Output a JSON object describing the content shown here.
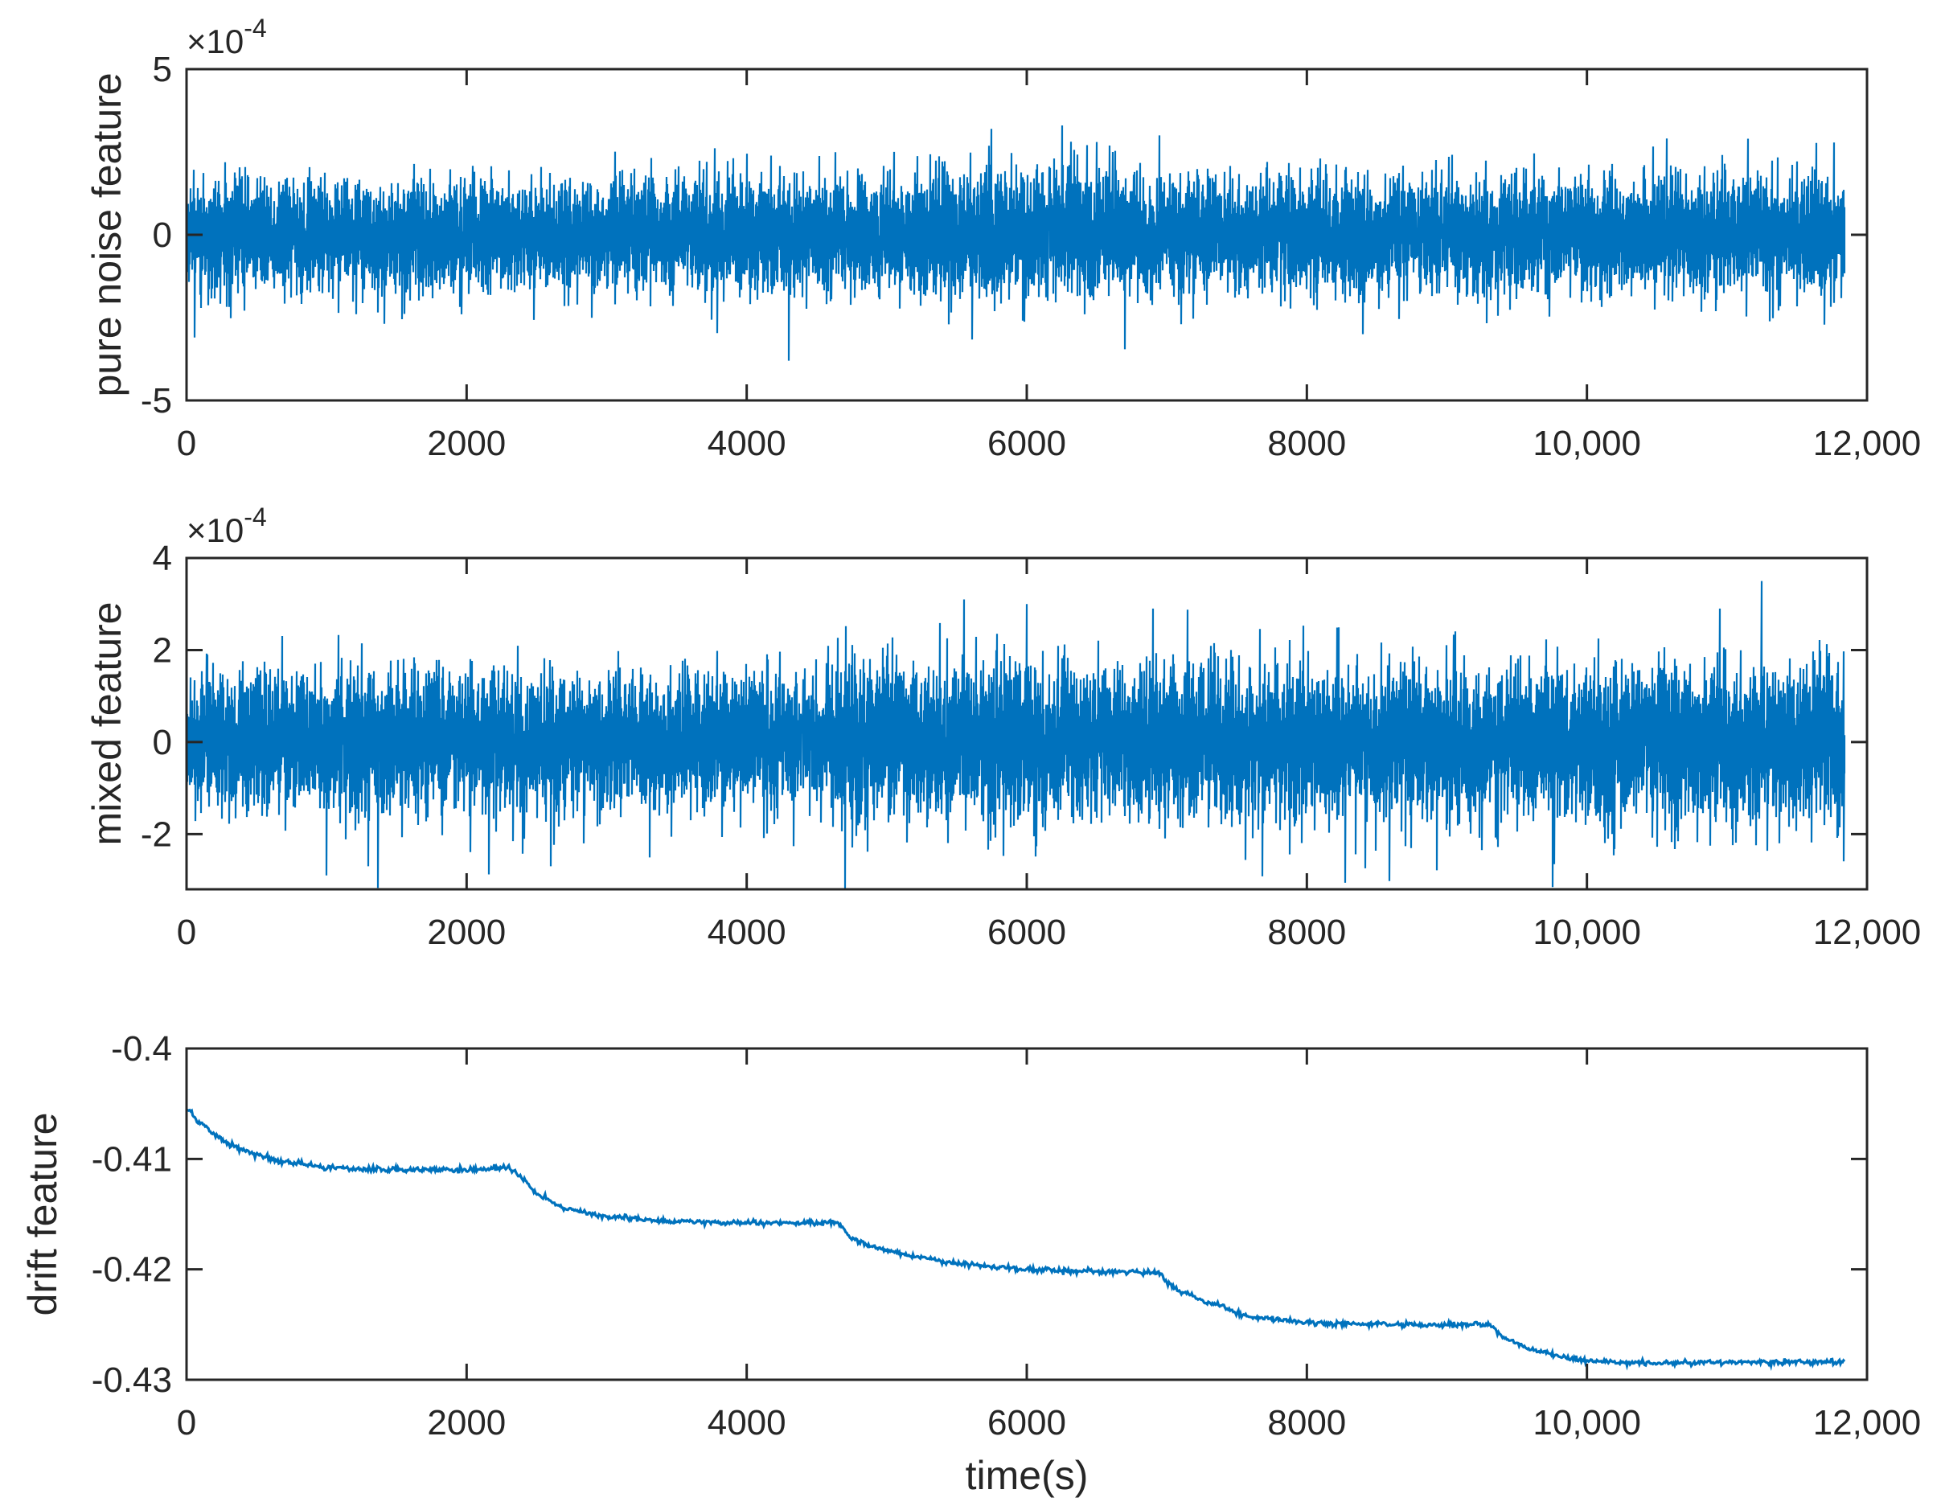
{
  "chart_data": [
    {
      "type": "line",
      "id": "pure-noise",
      "title": "",
      "xlabel": "",
      "ylabel": "pure noise feature",
      "exponent_label": "×10",
      "exponent_power": "-4",
      "xlim": [
        0,
        12000
      ],
      "ylim": [
        -5,
        5
      ],
      "y_scale_factor": 0.0001,
      "x_ticks": [
        0,
        2000,
        4000,
        6000,
        8000,
        10000,
        12000
      ],
      "x_tick_labels": [
        "0",
        "2000",
        "4000",
        "6000",
        "8000",
        "10,000",
        "12,000"
      ],
      "y_ticks": [
        -5,
        0,
        5
      ],
      "y_tick_labels": [
        "-5",
        "0",
        "5"
      ],
      "color": "#0072bd",
      "series": [
        {
          "kind": "noise",
          "x_range": [
            0,
            11840
          ],
          "x_step": 1,
          "mean": 0,
          "std": 0.8,
          "envelope": [
            [
              0,
              1.0
            ],
            [
              4800,
              1.0
            ],
            [
              5400,
              1.15
            ],
            [
              6600,
              1.15
            ],
            [
              7000,
              1.0
            ],
            [
              10800,
              1.05
            ],
            [
              11840,
              1.05
            ]
          ],
          "spikes": [
            [
              4300,
              -3.8
            ],
            [
              6250,
              3.3
            ],
            [
              5750,
              3.2
            ],
            [
              6500,
              2.8
            ],
            [
              6950,
              3.0
            ],
            [
              11150,
              2.9
            ],
            [
              60,
              -3.1
            ],
            [
              8400,
              -3.0
            ],
            [
              7100,
              -2.7
            ]
          ]
        }
      ]
    },
    {
      "type": "line",
      "id": "mixed",
      "title": "",
      "xlabel": "",
      "ylabel": "mixed feature",
      "exponent_label": "×10",
      "exponent_power": "-4",
      "xlim": [
        0,
        12000
      ],
      "ylim": [
        -3.2,
        4
      ],
      "y_scale_factor": 0.0001,
      "x_ticks": [
        0,
        2000,
        4000,
        6000,
        8000,
        10000,
        12000
      ],
      "x_tick_labels": [
        "0",
        "2000",
        "4000",
        "6000",
        "8000",
        "10,000",
        "12,000"
      ],
      "y_ticks": [
        -2,
        0,
        2,
        4
      ],
      "y_tick_labels": [
        "-2",
        "0",
        "2",
        "4"
      ],
      "color": "#0072bd",
      "series": [
        {
          "kind": "noise",
          "x_range": [
            0,
            11840
          ],
          "x_step": 1,
          "mean": 0,
          "std": 0.72,
          "envelope": [
            [
              0,
              1.0
            ],
            [
              4650,
              1.0
            ],
            [
              4700,
              1.12
            ],
            [
              6000,
              1.12
            ],
            [
              11840,
              1.1
            ]
          ],
          "spikes": [
            [
              4700,
              -3.2
            ],
            [
              1000,
              -2.9
            ],
            [
              5550,
              3.1
            ],
            [
              6000,
              3.0
            ],
            [
              11250,
              3.5
            ],
            [
              6900,
              2.9
            ],
            [
              10950,
              2.9
            ],
            [
              2600,
              -2.7
            ],
            [
              1300,
              -2.7
            ]
          ]
        }
      ]
    },
    {
      "type": "line",
      "id": "drift",
      "title": "",
      "xlabel": "time(s)",
      "ylabel": "drift feature",
      "xlim": [
        0,
        12000
      ],
      "ylim": [
        -0.43,
        -0.4
      ],
      "x_ticks": [
        0,
        2000,
        4000,
        6000,
        8000,
        10000,
        12000
      ],
      "x_tick_labels": [
        "0",
        "2000",
        "4000",
        "6000",
        "8000",
        "10,000",
        "12,000"
      ],
      "y_ticks": [
        -0.43,
        -0.42,
        -0.41,
        -0.4
      ],
      "y_tick_labels": [
        "-0.43",
        "-0.42",
        "-0.41",
        "-0.4"
      ],
      "color": "#0072bd",
      "series": [
        {
          "kind": "line",
          "x": [
            0,
            100,
            200,
            300,
            500,
            700,
            1000,
            1500,
            2000,
            2300,
            2400,
            2500,
            2700,
            3000,
            3500,
            4000,
            4500,
            4650,
            4750,
            4900,
            5200,
            5500,
            6000,
            6500,
            6950,
            7000,
            7100,
            7300,
            7600,
            8000,
            8500,
            9000,
            9300,
            9400,
            9600,
            9800,
            10000,
            10500,
            11000,
            11500,
            11840
          ],
          "y": [
            -0.4055,
            -0.4068,
            -0.4078,
            -0.4086,
            -0.4097,
            -0.4103,
            -0.4108,
            -0.411,
            -0.411,
            -0.4108,
            -0.4118,
            -0.4132,
            -0.4145,
            -0.4152,
            -0.4157,
            -0.4158,
            -0.4158,
            -0.4158,
            -0.4172,
            -0.418,
            -0.4188,
            -0.4195,
            -0.42,
            -0.4202,
            -0.4203,
            -0.4212,
            -0.422,
            -0.423,
            -0.4243,
            -0.4248,
            -0.425,
            -0.425,
            -0.425,
            -0.4262,
            -0.4272,
            -0.4279,
            -0.4283,
            -0.4285,
            -0.4284,
            -0.4284,
            -0.4284
          ],
          "noise_std": 0.00012
        }
      ]
    }
  ]
}
